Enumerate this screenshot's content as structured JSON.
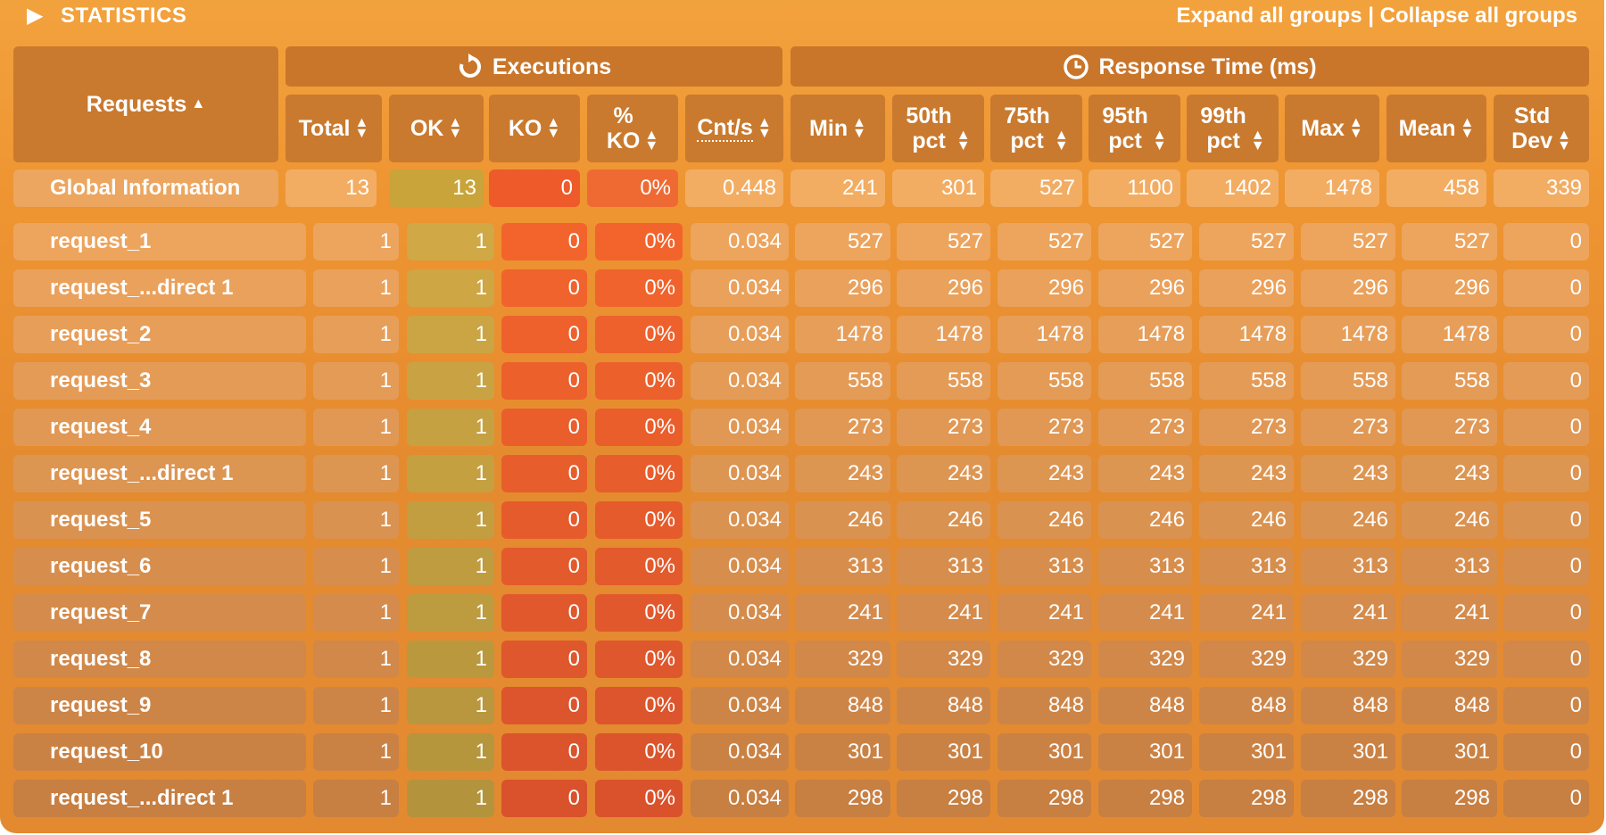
{
  "header": {
    "title": "STATISTICS",
    "expand_label": "Expand all groups",
    "separator": "|",
    "collapse_label": "Collapse all groups"
  },
  "groups": {
    "executions": "Executions",
    "response_time": "Response Time (ms)"
  },
  "columns": {
    "requests": "Requests",
    "total": "Total",
    "ok": "OK",
    "ko": "KO",
    "pct_ko_1": "%",
    "pct_ko_2": "KO",
    "cnts": "Cnt/s",
    "min": "Min",
    "p50_1": "50th",
    "p50_2": "pct",
    "p75_1": "75th",
    "p75_2": "pct",
    "p95_1": "95th",
    "p95_2": "pct",
    "p99_1": "99th",
    "p99_2": "pct",
    "max": "Max",
    "mean": "Mean",
    "std_1": "Std",
    "std_2": "Dev"
  },
  "global": [
    "Global Information",
    "13",
    "13",
    "0",
    "0%",
    "0.448",
    "241",
    "301",
    "527",
    "1100",
    "1402",
    "1478",
    "458",
    "339"
  ],
  "rows": [
    [
      "request_1",
      "1",
      "1",
      "0",
      "0%",
      "0.034",
      "527",
      "527",
      "527",
      "527",
      "527",
      "527",
      "527",
      "0"
    ],
    [
      "request_...direct 1",
      "1",
      "1",
      "0",
      "0%",
      "0.034",
      "296",
      "296",
      "296",
      "296",
      "296",
      "296",
      "296",
      "0"
    ],
    [
      "request_2",
      "1",
      "1",
      "0",
      "0%",
      "0.034",
      "1478",
      "1478",
      "1478",
      "1478",
      "1478",
      "1478",
      "1478",
      "0"
    ],
    [
      "request_3",
      "1",
      "1",
      "0",
      "0%",
      "0.034",
      "558",
      "558",
      "558",
      "558",
      "558",
      "558",
      "558",
      "0"
    ],
    [
      "request_4",
      "1",
      "1",
      "0",
      "0%",
      "0.034",
      "273",
      "273",
      "273",
      "273",
      "273",
      "273",
      "273",
      "0"
    ],
    [
      "request_...direct 1",
      "1",
      "1",
      "0",
      "0%",
      "0.034",
      "243",
      "243",
      "243",
      "243",
      "243",
      "243",
      "243",
      "0"
    ],
    [
      "request_5",
      "1",
      "1",
      "0",
      "0%",
      "0.034",
      "246",
      "246",
      "246",
      "246",
      "246",
      "246",
      "246",
      "0"
    ],
    [
      "request_6",
      "1",
      "1",
      "0",
      "0%",
      "0.034",
      "313",
      "313",
      "313",
      "313",
      "313",
      "313",
      "313",
      "0"
    ],
    [
      "request_7",
      "1",
      "1",
      "0",
      "0%",
      "0.034",
      "241",
      "241",
      "241",
      "241",
      "241",
      "241",
      "241",
      "0"
    ],
    [
      "request_8",
      "1",
      "1",
      "0",
      "0%",
      "0.034",
      "329",
      "329",
      "329",
      "329",
      "329",
      "329",
      "329",
      "0"
    ],
    [
      "request_9",
      "1",
      "1",
      "0",
      "0%",
      "0.034",
      "848",
      "848",
      "848",
      "848",
      "848",
      "848",
      "848",
      "0"
    ],
    [
      "request_10",
      "1",
      "1",
      "0",
      "0%",
      "0.034",
      "301",
      "301",
      "301",
      "301",
      "301",
      "301",
      "301",
      "0"
    ],
    [
      "request_...direct 1",
      "1",
      "1",
      "0",
      "0%",
      "0.034",
      "298",
      "298",
      "298",
      "298",
      "298",
      "298",
      "298",
      "0"
    ]
  ],
  "colors": {
    "ok": "#c8a43a",
    "ko": "#ee5a2a",
    "header": "#c97a2f",
    "panel": "#ee9431"
  },
  "icons": {
    "collapse": "caret-right-icon",
    "executions": "refresh-icon",
    "response_time": "clock-icon",
    "sort": "sort-icon"
  }
}
